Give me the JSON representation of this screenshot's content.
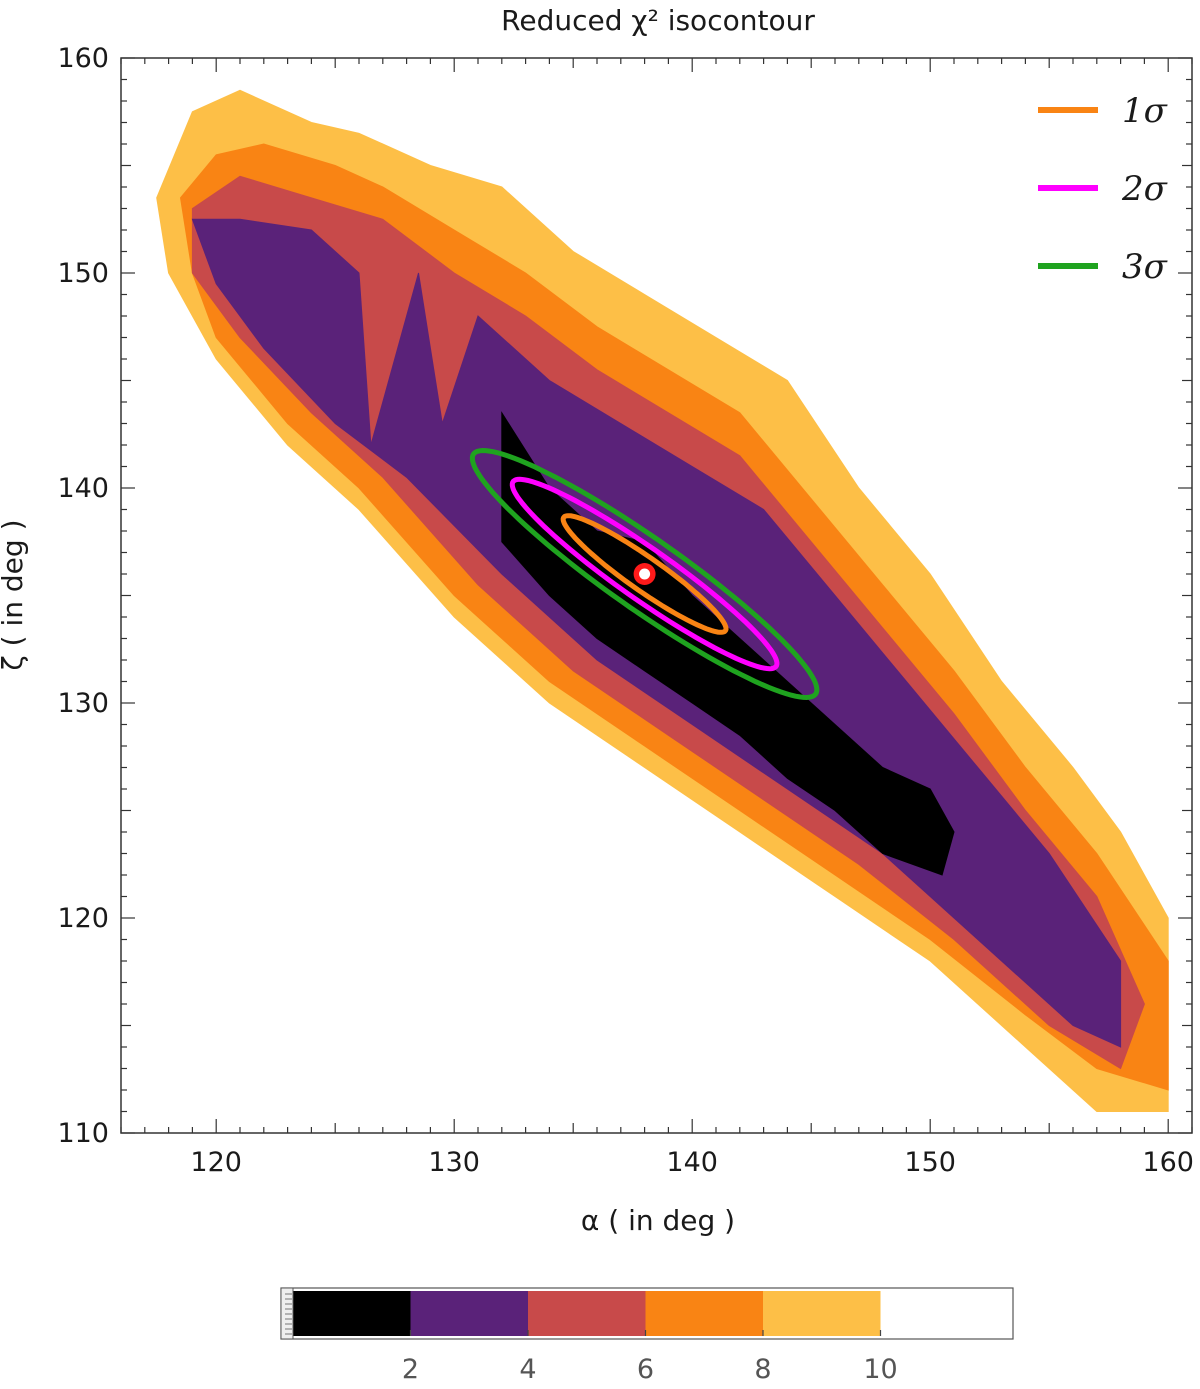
{
  "chart_data": {
    "type": "contour",
    "title": "Reduced χ² isocontour",
    "xlabel": "α ( in deg )",
    "ylabel": "ζ ( in deg )",
    "xlim": [
      116,
      161
    ],
    "ylim": [
      110,
      160
    ],
    "xticks": [
      120,
      130,
      140,
      150,
      160
    ],
    "yticks": [
      110,
      120,
      130,
      140,
      150,
      160
    ],
    "levels": [
      {
        "range": [
          0,
          2
        ],
        "color": "#000000"
      },
      {
        "range": [
          2,
          4
        ],
        "color": "#5a2279"
      },
      {
        "range": [
          4,
          6
        ],
        "color": "#c84a4a"
      },
      {
        "range": [
          6,
          8
        ],
        "color": "#f98414"
      },
      {
        "range": [
          8,
          10
        ],
        "color": "#fdbf47"
      },
      {
        "range": [
          10,
          12
        ],
        "color": "#ffffff"
      }
    ],
    "colorbar_ticks": [
      2,
      4,
      6,
      8,
      10
    ],
    "best_fit": {
      "x": 138,
      "y": 136
    },
    "ellipses": [
      {
        "name": "1σ",
        "color": "#f98414",
        "cx": 138,
        "cy": 136,
        "semi_major": 4.3,
        "semi_minor": 0.75,
        "angle_deg": -38
      },
      {
        "name": "2σ",
        "color": "#ff00ff",
        "cx": 138,
        "cy": 136,
        "semi_major": 7.0,
        "semi_minor": 1.15,
        "angle_deg": -38
      },
      {
        "name": "3σ",
        "color": "#1fa31f",
        "cx": 138,
        "cy": 136,
        "semi_major": 9.1,
        "semi_minor": 1.6,
        "angle_deg": -38
      }
    ],
    "regions": {
      "level_10": [
        [
          117.5,
          153.5
        ],
        [
          119,
          157.5
        ],
        [
          121,
          158.5
        ],
        [
          124,
          157
        ],
        [
          126,
          156.5
        ],
        [
          129,
          155
        ],
        [
          132,
          154
        ],
        [
          135,
          151
        ],
        [
          138,
          149
        ],
        [
          141,
          147
        ],
        [
          144,
          145
        ],
        [
          147,
          140
        ],
        [
          150,
          136
        ],
        [
          153,
          131
        ],
        [
          156,
          127
        ],
        [
          158,
          124
        ],
        [
          160,
          120
        ],
        [
          160,
          111
        ],
        [
          157,
          111
        ],
        [
          154,
          114
        ],
        [
          150,
          118
        ],
        [
          146,
          121
        ],
        [
          142,
          124
        ],
        [
          138,
          127
        ],
        [
          134,
          130
        ],
        [
          130,
          134
        ],
        [
          126,
          139
        ],
        [
          123,
          142
        ],
        [
          120,
          146
        ],
        [
          118,
          150
        ]
      ],
      "level_8": [
        [
          118.5,
          153.5
        ],
        [
          120,
          155.5
        ],
        [
          122,
          156
        ],
        [
          125,
          155
        ],
        [
          127,
          154
        ],
        [
          130,
          152
        ],
        [
          133,
          150
        ],
        [
          136,
          147.5
        ],
        [
          139,
          145.5
        ],
        [
          142,
          143.5
        ],
        [
          145,
          139.5
        ],
        [
          148,
          135.5
        ],
        [
          151,
          131.5
        ],
        [
          154,
          127
        ],
        [
          157,
          123
        ],
        [
          160,
          118
        ],
        [
          160,
          112
        ],
        [
          157,
          113
        ],
        [
          154,
          115.5
        ],
        [
          150,
          119
        ],
        [
          146,
          122
        ],
        [
          142,
          125
        ],
        [
          138,
          128
        ],
        [
          134,
          131
        ],
        [
          130,
          135
        ],
        [
          126,
          140
        ],
        [
          123,
          143
        ],
        [
          120,
          147
        ],
        [
          119,
          150
        ]
      ],
      "level_6": [
        [
          119,
          153
        ],
        [
          121,
          154.5
        ],
        [
          124,
          153.5
        ],
        [
          127,
          152.5
        ],
        [
          130,
          150
        ],
        [
          133,
          148
        ],
        [
          136,
          145.5
        ],
        [
          139,
          143.5
        ],
        [
          142,
          141.5
        ],
        [
          145,
          137.5
        ],
        [
          148,
          133.5
        ],
        [
          151,
          129.5
        ],
        [
          154,
          125
        ],
        [
          157,
          121
        ],
        [
          159,
          116
        ],
        [
          158,
          113
        ],
        [
          155,
          115
        ],
        [
          151,
          119
        ],
        [
          147,
          122.5
        ],
        [
          143,
          125.5
        ],
        [
          139,
          128.5
        ],
        [
          135,
          131.5
        ],
        [
          131,
          135.5
        ],
        [
          127,
          140.5
        ],
        [
          124,
          143.5
        ],
        [
          121,
          147
        ],
        [
          119,
          150
        ]
      ],
      "level_4": [
        [
          119,
          152.5
        ],
        [
          121,
          152.5
        ],
        [
          124,
          152
        ],
        [
          126,
          150
        ],
        [
          126.5,
          142
        ],
        [
          128.5,
          150
        ],
        [
          129.5,
          143
        ],
        [
          131,
          148
        ],
        [
          134,
          145
        ],
        [
          137,
          143
        ],
        [
          140,
          141
        ],
        [
          143,
          139
        ],
        [
          146,
          135
        ],
        [
          149,
          131
        ],
        [
          152,
          127
        ],
        [
          155,
          123
        ],
        [
          158,
          118
        ],
        [
          158,
          114
        ],
        [
          156,
          115
        ],
        [
          152,
          119
        ],
        [
          148,
          123
        ],
        [
          144,
          126
        ],
        [
          140,
          129
        ],
        [
          136,
          132
        ],
        [
          132,
          136
        ],
        [
          128,
          140.5
        ],
        [
          125,
          143
        ],
        [
          122,
          146.5
        ],
        [
          120,
          149.5
        ]
      ],
      "level_2": [
        [
          132,
          143.5
        ],
        [
          134,
          140
        ],
        [
          136,
          138
        ],
        [
          138,
          137.5
        ],
        [
          140,
          135
        ],
        [
          142,
          133
        ],
        [
          144,
          131
        ],
        [
          146,
          129
        ],
        [
          148,
          127
        ],
        [
          150,
          126
        ],
        [
          151,
          124
        ],
        [
          150.5,
          122
        ],
        [
          148,
          123
        ],
        [
          146,
          125
        ],
        [
          144,
          126.5
        ],
        [
          142,
          128.5
        ],
        [
          140,
          130
        ],
        [
          138,
          131.5
        ],
        [
          136,
          133
        ],
        [
          134,
          135
        ],
        [
          132,
          137.5
        ]
      ]
    }
  }
}
